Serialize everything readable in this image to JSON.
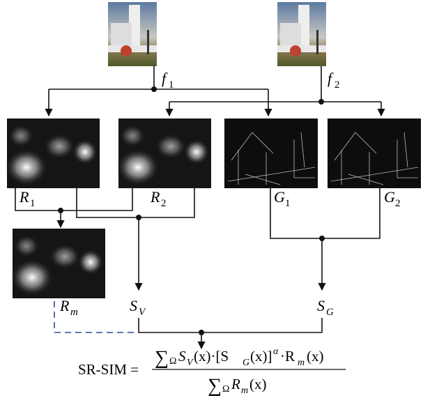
{
  "nodes": [
    {
      "symbol": "f",
      "sub": "1"
    },
    {
      "symbol": "f",
      "sub": "2"
    },
    {
      "symbol": "R",
      "sub": "1"
    },
    {
      "symbol": "R",
      "sub": "2"
    },
    {
      "symbol": "G",
      "sub": "1"
    },
    {
      "symbol": "G",
      "sub": "2"
    },
    {
      "symbol": "R",
      "sub": "m"
    },
    {
      "symbol": "S",
      "sub": "V"
    },
    {
      "symbol": "S",
      "sub": "G"
    }
  ],
  "formula": {
    "lhs": "SR-SIM =",
    "numerator": [
      "∑",
      "Ω",
      "S",
      "V",
      "(x)·[S",
      "G",
      "(x)]",
      "α",
      "·R",
      "m",
      "(x)"
    ],
    "denominator": [
      "∑",
      "Ω",
      "R",
      "m",
      "(x)"
    ]
  }
}
